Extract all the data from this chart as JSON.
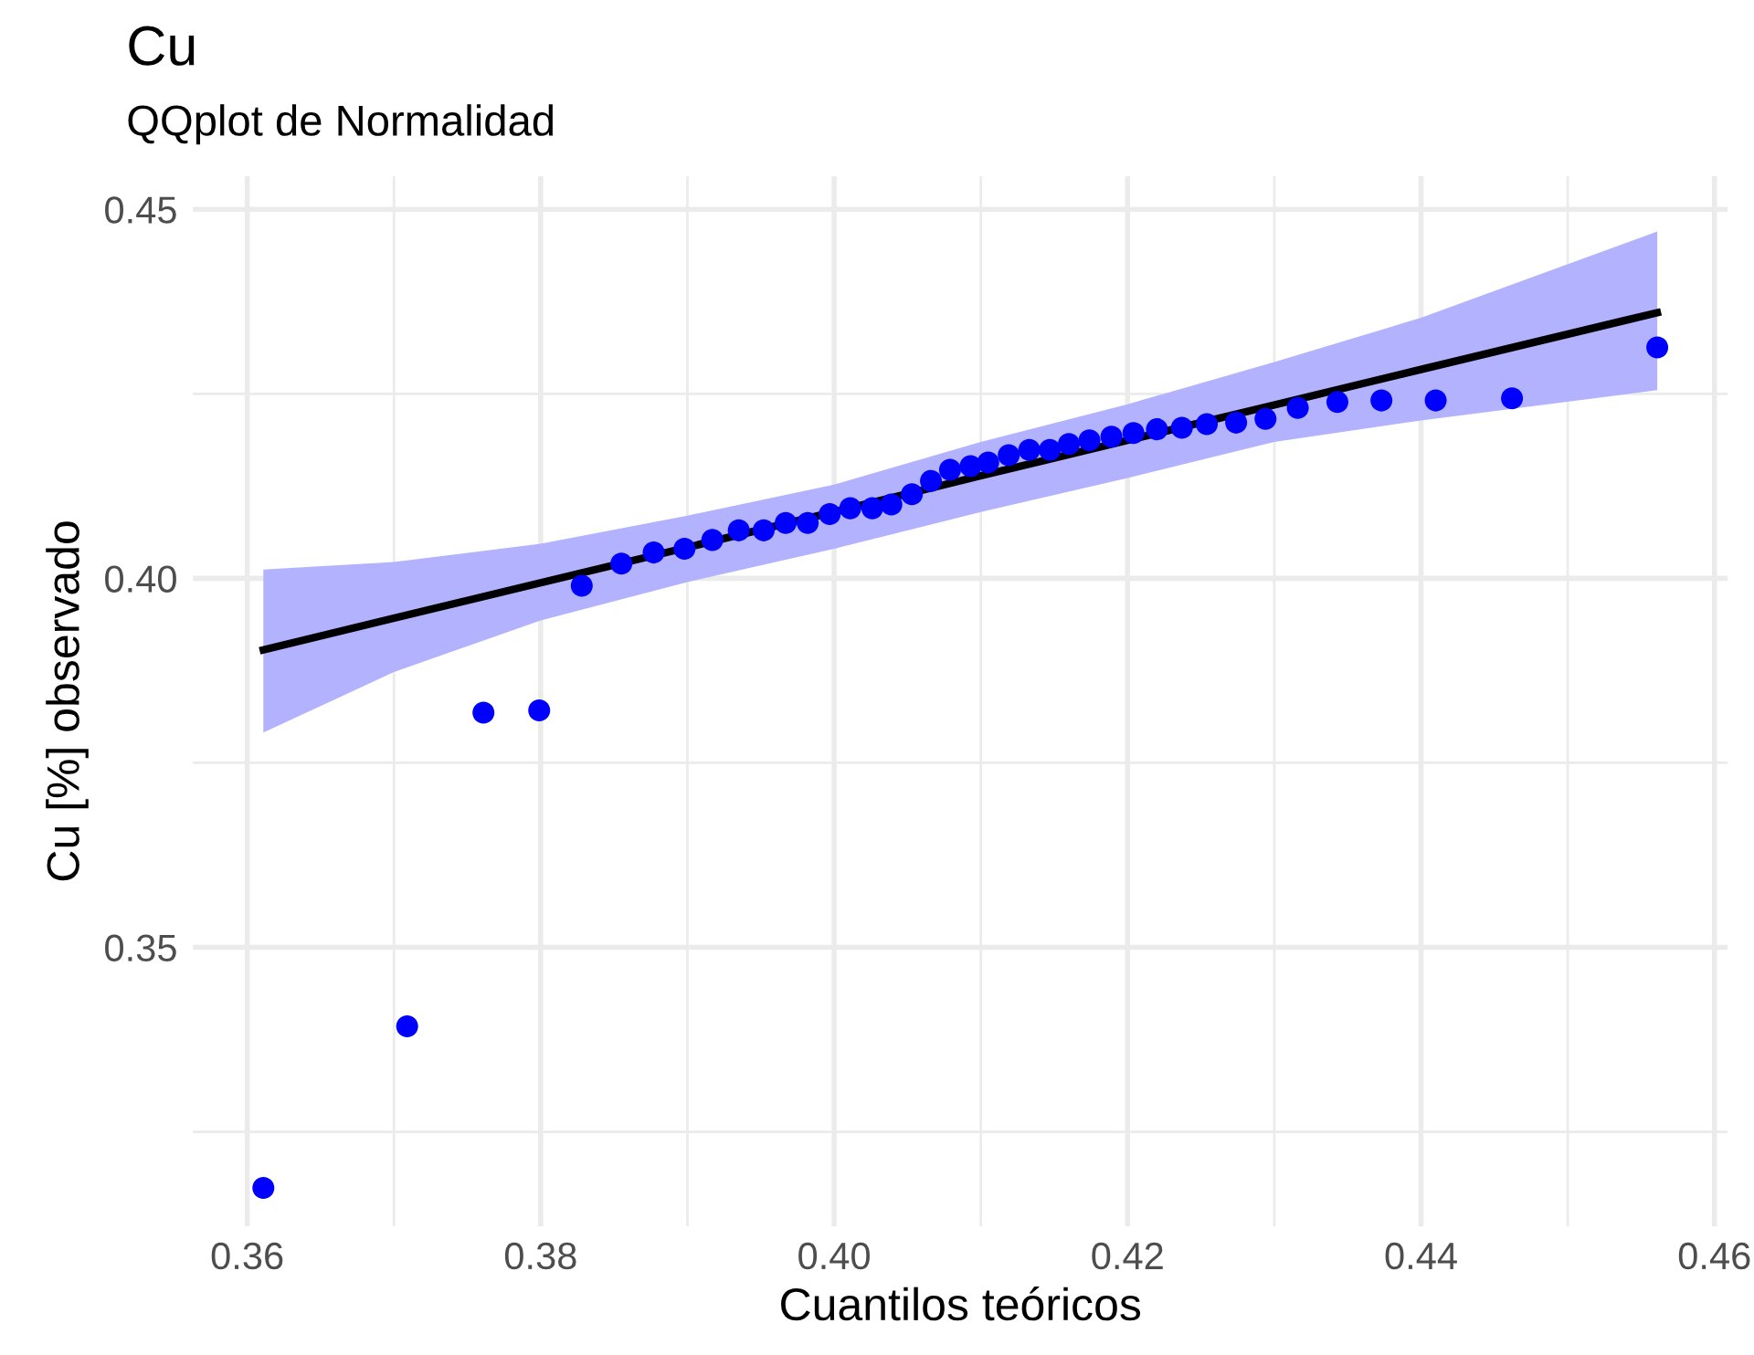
{
  "chart_data": {
    "type": "scatter",
    "title": "Cu",
    "subtitle": "QQplot de Normalidad",
    "xlabel": "Cuantilos teóricos",
    "ylabel": "Cu [%] observado",
    "series": [
      {
        "type": "line",
        "color": "#000000",
        "x": [
          0.3611,
          0.37,
          0.38,
          0.39,
          0.4,
          0.41,
          0.42,
          0.43,
          0.44,
          0.4561
        ],
        "values": [
          0.3903,
          0.3946,
          0.3994,
          0.4042,
          0.409,
          0.4139,
          0.4187,
          0.4235,
          0.4283,
          0.436
        ],
        "lower": [
          0.3791,
          0.3873,
          0.3943,
          0.3995,
          0.404,
          0.409,
          0.4136,
          0.4185,
          0.4214,
          0.4255
        ],
        "upper": [
          0.4012,
          0.4022,
          0.4047,
          0.4085,
          0.4127,
          0.4185,
          0.4236,
          0.4293,
          0.4353,
          0.447
        ],
        "marker": "none"
      },
      {
        "color": "#0000ff",
        "x": [
          0.3611,
          0.3709,
          0.3761,
          0.3799,
          0.3828,
          0.3855,
          0.3877,
          0.3898,
          0.3917,
          0.3935,
          0.3952,
          0.3967,
          0.3982,
          0.3997,
          0.4011,
          0.4026,
          0.4039,
          0.4053,
          0.4066,
          0.4079,
          0.4093,
          0.4105,
          0.4119,
          0.4133,
          0.4147,
          0.416,
          0.4174,
          0.4189,
          0.4204,
          0.422,
          0.4237,
          0.4254,
          0.4274,
          0.4294,
          0.4316,
          0.4343,
          0.4373,
          0.441,
          0.4462,
          0.4561
        ],
        "values": [
          0.3174,
          0.3393,
          0.3818,
          0.3821,
          0.399,
          0.402,
          0.4035,
          0.404,
          0.4052,
          0.4065,
          0.4065,
          0.4075,
          0.4075,
          0.4087,
          0.4095,
          0.4095,
          0.41,
          0.4114,
          0.4132,
          0.4147,
          0.4152,
          0.4157,
          0.4167,
          0.4174,
          0.4174,
          0.4182,
          0.4187,
          0.4192,
          0.4197,
          0.4202,
          0.4204,
          0.4209,
          0.4211,
          0.4216,
          0.4231,
          0.4239,
          0.4241,
          0.4241,
          0.4244,
          0.4313
        ]
      }
    ],
    "marker": "circle",
    "grid": true,
    "xlim": [
      0.3563,
      0.4609
    ],
    "ylim": [
      0.3122,
      0.4545
    ],
    "xticks": [
      0.36,
      {
        "value": 0.37,
        "label": null
      },
      0.38,
      {
        "value": 0.39,
        "label": null
      },
      {
        "value": 0.4,
        "label": "0.40"
      },
      {
        "value": 0.41,
        "label": null
      },
      0.42,
      {
        "value": 0.43,
        "label": null
      },
      0.44,
      {
        "value": 0.45,
        "label": null
      },
      0.46
    ],
    "yticks": [
      {
        "value": 0.325,
        "label": null
      },
      0.35,
      {
        "value": 0.375,
        "label": null
      },
      {
        "value": 0.4,
        "label": "0.40"
      },
      {
        "value": 0.425,
        "label": null
      },
      0.45
    ]
  }
}
